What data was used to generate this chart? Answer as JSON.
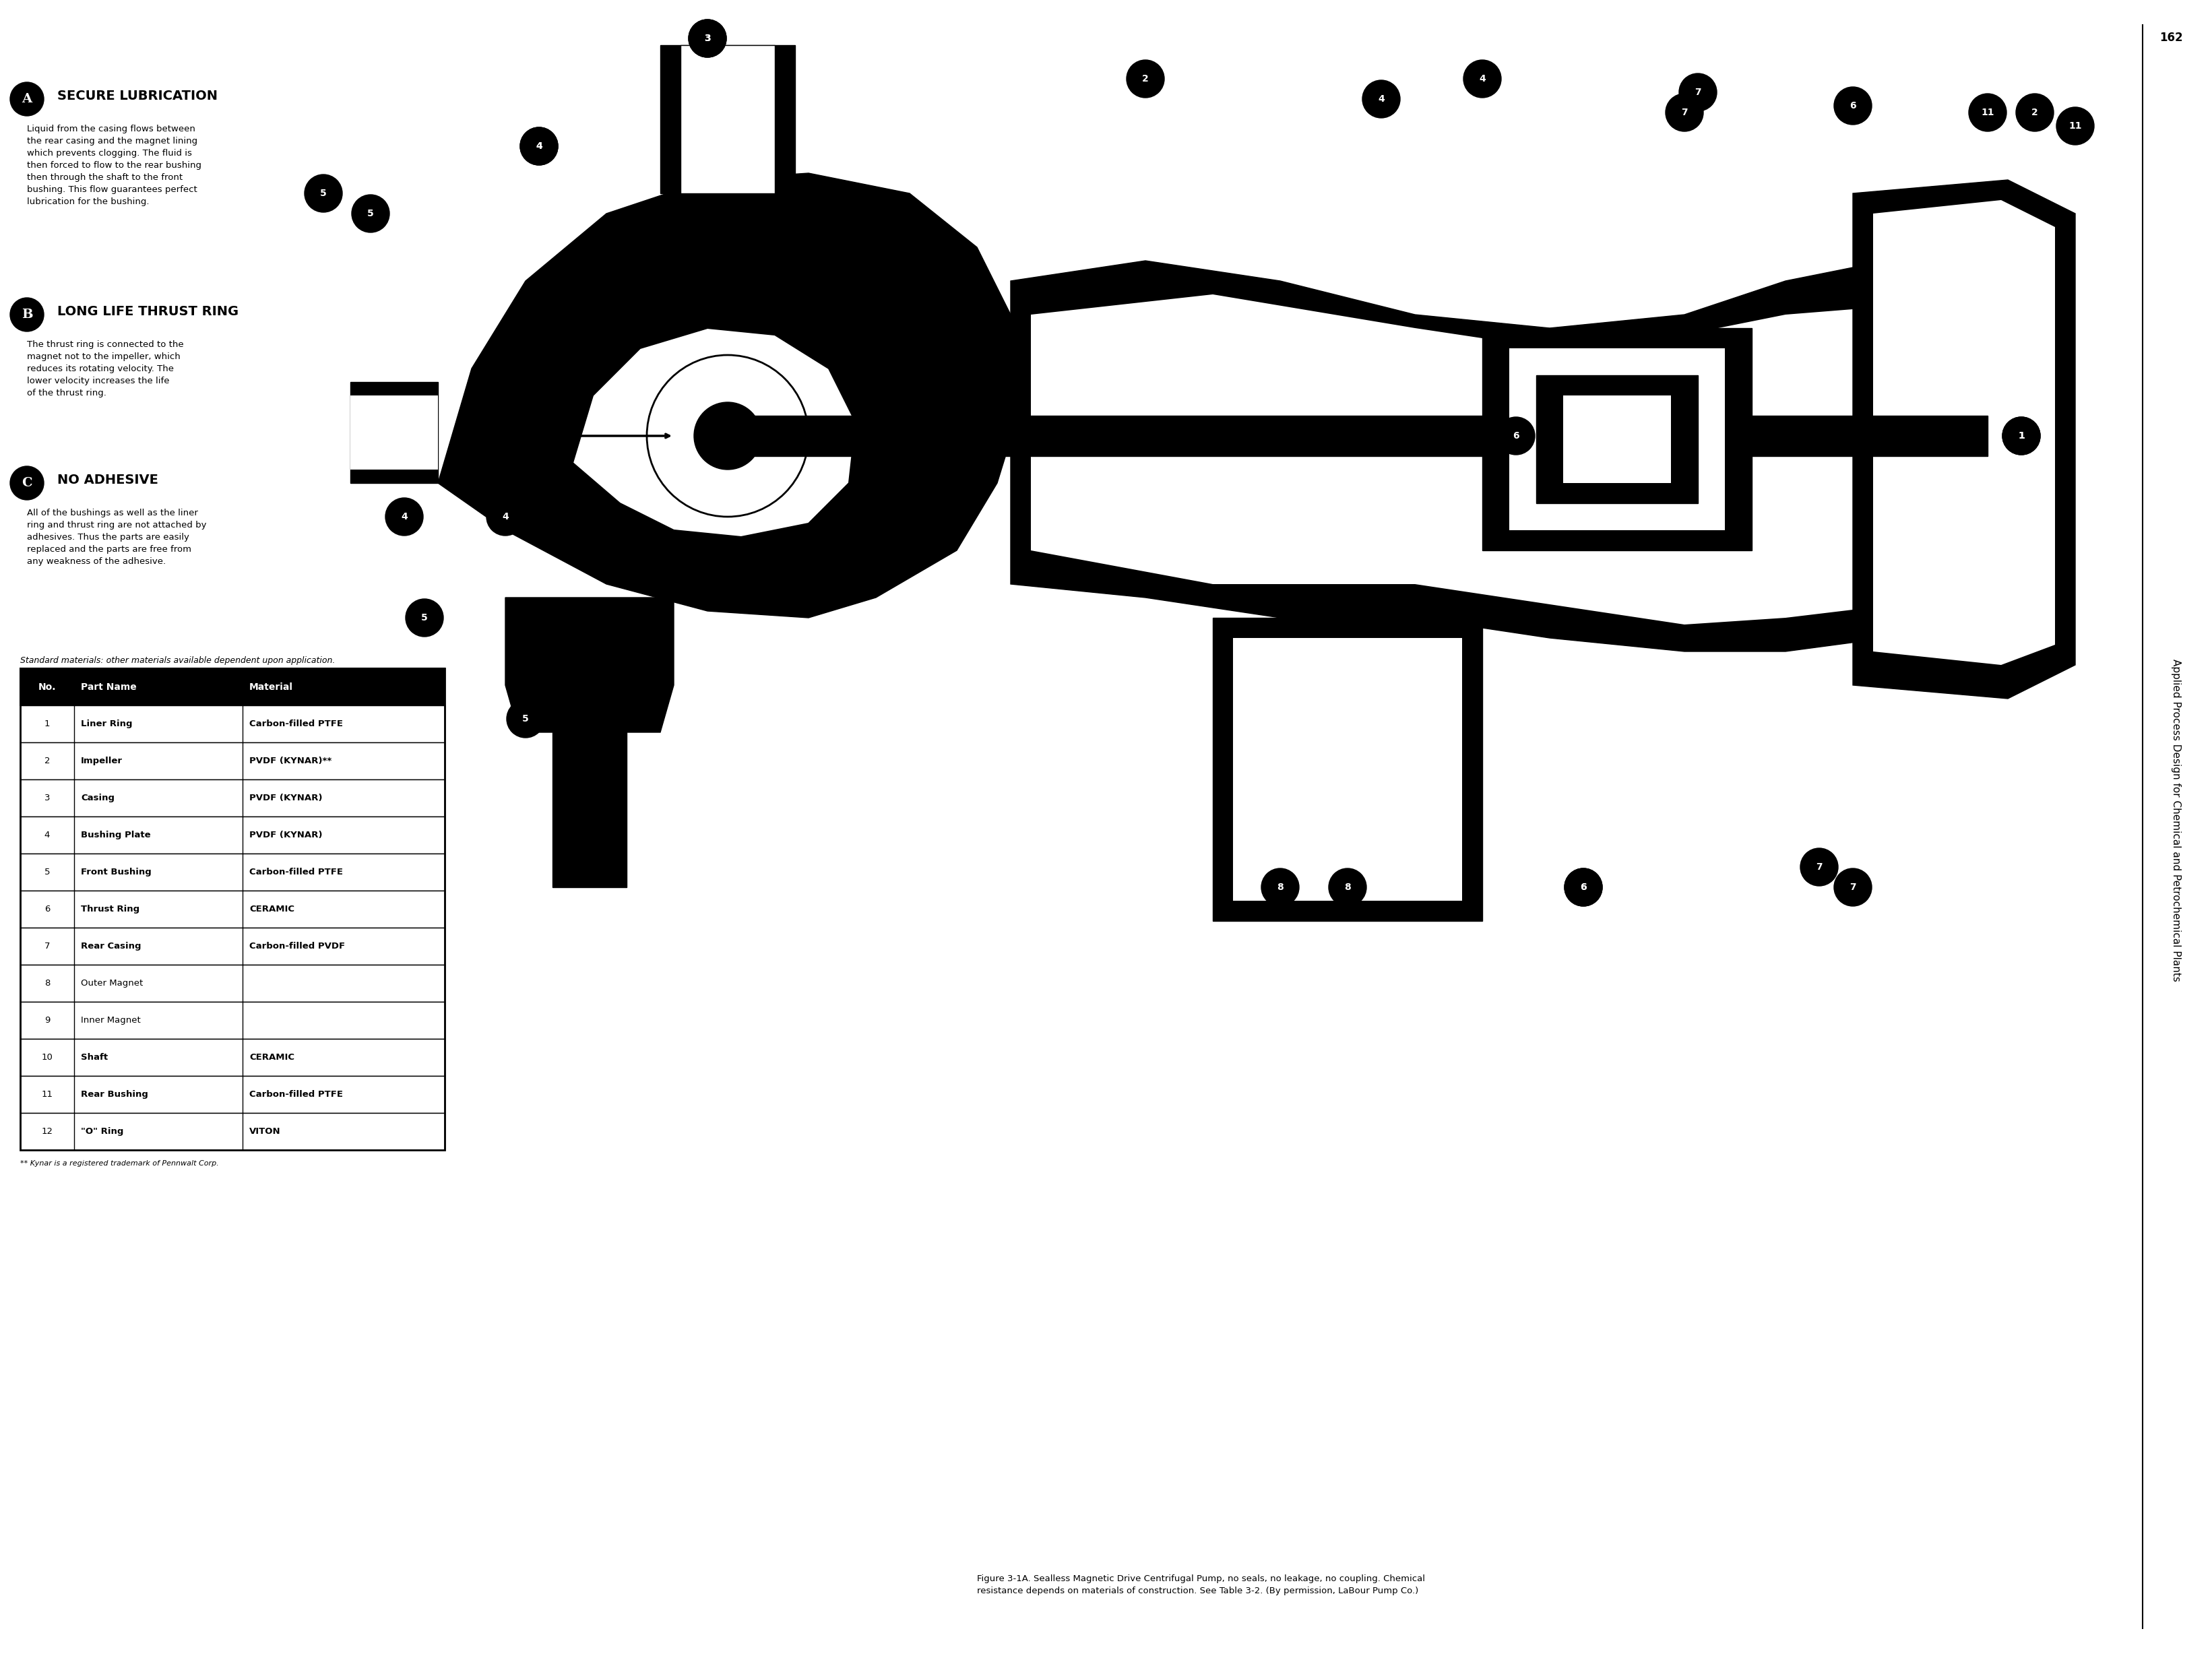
{
  "background_color": "#ffffff",
  "page_width": 32.83,
  "page_height": 24.67,
  "section_A_title": "SECURE LUBRICATION",
  "section_A_body": "Liquid from the casing flows between\nthe rear casing and the magnet lining\nwhich prevents clogging. The fluid is\nthen forced to flow to the rear bushing\nthen through the shaft to the front\nbushing. This flow guarantees perfect\nlubrication for the bushing.",
  "section_B_title": "LONG LIFE THRUST RING",
  "section_B_body": "The thrust ring is connected to the\nmagnet not to the impeller, which\nreduces its rotating velocity. The\nlower velocity increases the life\nof the thrust ring.",
  "section_C_title": "NO ADHESIVE",
  "section_C_body": "All of the bushings as well as the liner\nring and thrust ring are not attached by\nadhesives. Thus the parts are easily\nreplaced and the parts are free from\nany weakness of the adhesive.",
  "table_note": "Standard materials: other materials available dependent upon application.",
  "table_headers": [
    "No.",
    "Part Name",
    "Material"
  ],
  "table_rows": [
    [
      "1",
      "Liner Ring",
      "Carbon-filled PTFE"
    ],
    [
      "2",
      "Impeller",
      "PVDF (KYNAR)**"
    ],
    [
      "3",
      "Casing",
      "PVDF (KYNAR)"
    ],
    [
      "4",
      "Bushing Plate",
      "PVDF (KYNAR)"
    ],
    [
      "5",
      "Front Bushing",
      "Carbon-filled PTFE"
    ],
    [
      "6",
      "Thrust Ring",
      "CERAMIC"
    ],
    [
      "7",
      "Rear Casing",
      "Carbon-filled PVDF"
    ],
    [
      "8",
      "Outer Magnet",
      ""
    ],
    [
      "9",
      "Inner Magnet",
      ""
    ],
    [
      "10",
      "Shaft",
      "CERAMIC"
    ],
    [
      "11",
      "Rear Bushing",
      "Carbon-filled PTFE"
    ],
    [
      "12",
      "\"O\" Ring",
      "VITON"
    ]
  ],
  "table_footnote": "** Kynar is a registered trademark of Pennwalt Corp.",
  "figure_caption": "Figure 3-1A. Sealless Magnetic Drive Centrifugal Pump, no seals, no leakage, no coupling. Chemical\nresistance depends on materials of construction. See Table 3-2. (By permission, LaBour Pump Co.)",
  "side_text": "Applied Process Design for Chemical and Petrochemical Plants",
  "page_number": "162",
  "text_color": "#000000",
  "header_bg_color": "#000000",
  "header_text_color": "#ffffff",
  "table_line_color": "#000000"
}
